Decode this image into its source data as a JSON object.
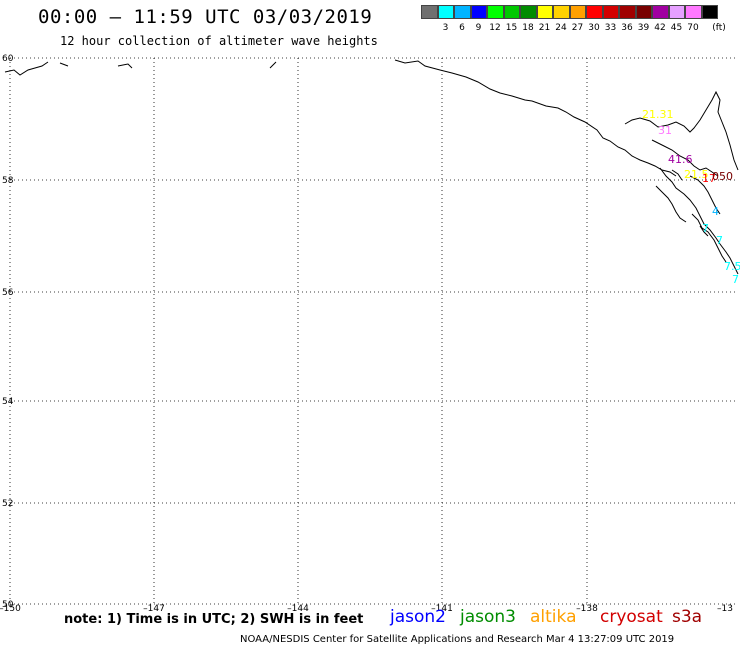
{
  "title": "00:00 – 11:59 UTC 03/03/2019",
  "subtitle": "12 hour collection of altimeter wave heights",
  "scale": {
    "unit": "(ft)",
    "bins": [
      {
        "label": "",
        "color": "#707070"
      },
      {
        "label": "3",
        "color": "#00ffff"
      },
      {
        "label": "6",
        "color": "#00b4ff"
      },
      {
        "label": "9",
        "color": "#0000ff"
      },
      {
        "label": "12",
        "color": "#00ff00"
      },
      {
        "label": "15",
        "color": "#00c800"
      },
      {
        "label": "18",
        "color": "#008c00"
      },
      {
        "label": "21",
        "color": "#ffff00"
      },
      {
        "label": "24",
        "color": "#ffd200"
      },
      {
        "label": "27",
        "color": "#ffa000"
      },
      {
        "label": "30",
        "color": "#ff0000"
      },
      {
        "label": "33",
        "color": "#d20000"
      },
      {
        "label": "36",
        "color": "#a00000"
      },
      {
        "label": "39",
        "color": "#780000"
      },
      {
        "label": "42",
        "color": "#a000a0"
      },
      {
        "label": "45",
        "color": "#e6a0ff"
      },
      {
        "label": "70",
        "color": "#ff78ff"
      },
      {
        "label": "",
        "color": "#000000"
      }
    ]
  },
  "map": {
    "lon_range": [
      -150,
      -135
    ],
    "lat_range": [
      50,
      60
    ],
    "lon_ticks": [
      "–150",
      "–147",
      "–144",
      "–141",
      "–138",
      "–13"
    ],
    "lat_ticks": [
      "60",
      "58",
      "56",
      "54",
      "52",
      "50"
    ],
    "observations": [
      {
        "text": "21.31",
        "color": "#ffff00"
      },
      {
        "text": "31",
        "color": "#ff78ff"
      },
      {
        "text": "41.6",
        "color": "#a000a0"
      },
      {
        "text": "21.5",
        "color": "#ffff00"
      },
      {
        "text": "17",
        "color": "#ff0000"
      },
      {
        "text": "050",
        "color": "#780000"
      },
      {
        "text": "4",
        "color": "#00b4ff"
      },
      {
        "text": "7",
        "color": "#00ffff"
      },
      {
        "text": "7",
        "color": "#00ffff"
      },
      {
        "text": "7.5",
        "color": "#00ffff"
      },
      {
        "text": "7",
        "color": "#00ffff"
      }
    ]
  },
  "note": "note: 1) Time is in UTC; 2) SWH is in feet",
  "satellites": [
    {
      "name": "jason2",
      "color": "#0000ff"
    },
    {
      "name": "jason3",
      "color": "#008c00"
    },
    {
      "name": "altika",
      "color": "#ffa000"
    },
    {
      "name": "cryosat",
      "color": "#d20000"
    },
    {
      "name": "s3a",
      "color": "#a00000"
    }
  ],
  "credit": "NOAA/NESDIS Center for Satellite Applications and Research    Mar  4 13:27:09 UTC 2019"
}
